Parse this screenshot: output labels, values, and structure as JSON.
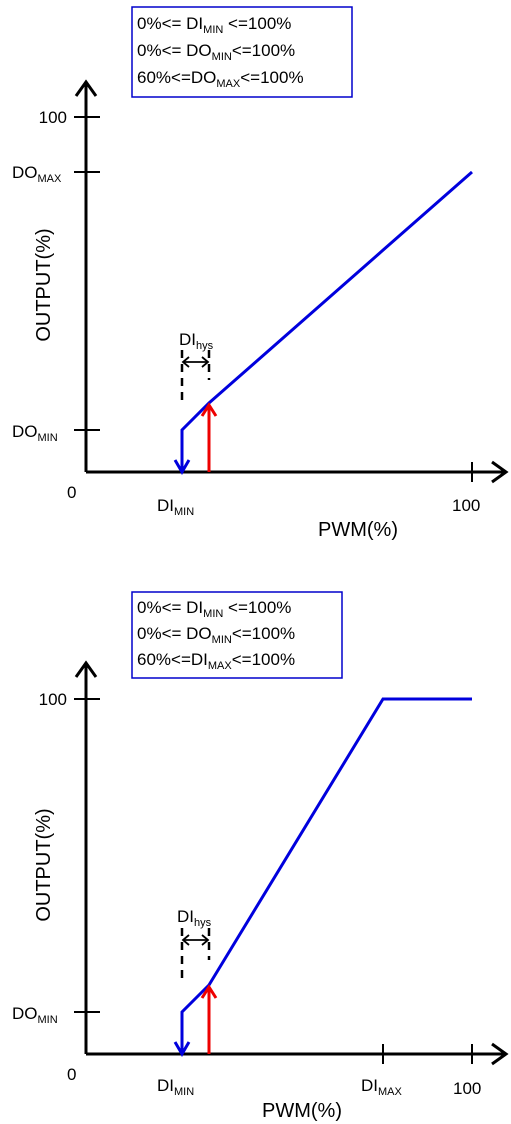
{
  "diagram1": {
    "constraints": [
      {
        "pre": "0%<= DI",
        "sub": "MIN",
        "post": " <=100%"
      },
      {
        "pre": "0%<= DO",
        "sub": "MIN",
        "post": "<=100%"
      },
      {
        "pre": "60%<=DO",
        "sub": "MAX",
        "post": "<=100%"
      }
    ],
    "y_axis_label": "OUTPUT(%)",
    "x_axis_label": "PWM(%)",
    "y_tick_100": "100",
    "y_tick_domax": {
      "base": "DO",
      "sub": "MAX"
    },
    "y_tick_domin": {
      "base": "DO",
      "sub": "MIN"
    },
    "origin": "0",
    "x_tick_dimin": {
      "base": "DI",
      "sub": "MIN"
    },
    "x_tick_100": "100",
    "hysteresis": {
      "base": "DI",
      "sub": "hys"
    }
  },
  "diagram2": {
    "constraints": [
      {
        "pre": "0%<= DI",
        "sub": "MIN",
        "post": " <=100%"
      },
      {
        "pre": "0%<= DO",
        "sub": "MIN",
        "post": "<=100%"
      },
      {
        "pre": "60%<=DI",
        "sub": "MAX",
        "post": "<=100%"
      }
    ],
    "y_axis_label": "OUTPUT(%)",
    "x_axis_label": "PWM(%)",
    "y_tick_100": "100",
    "y_tick_domin": {
      "base": "DO",
      "sub": "MIN"
    },
    "origin": "0",
    "x_tick_dimin": {
      "base": "DI",
      "sub": "MIN"
    },
    "x_tick_dimax": {
      "base": "DI",
      "sub": "MAX"
    },
    "x_tick_100": "100",
    "hysteresis": {
      "base": "DI",
      "sub": "hys"
    }
  },
  "colors": {
    "falling_curve": "#0000dd",
    "rising_curve": "#ee0000",
    "box_border": "#0000cc"
  }
}
